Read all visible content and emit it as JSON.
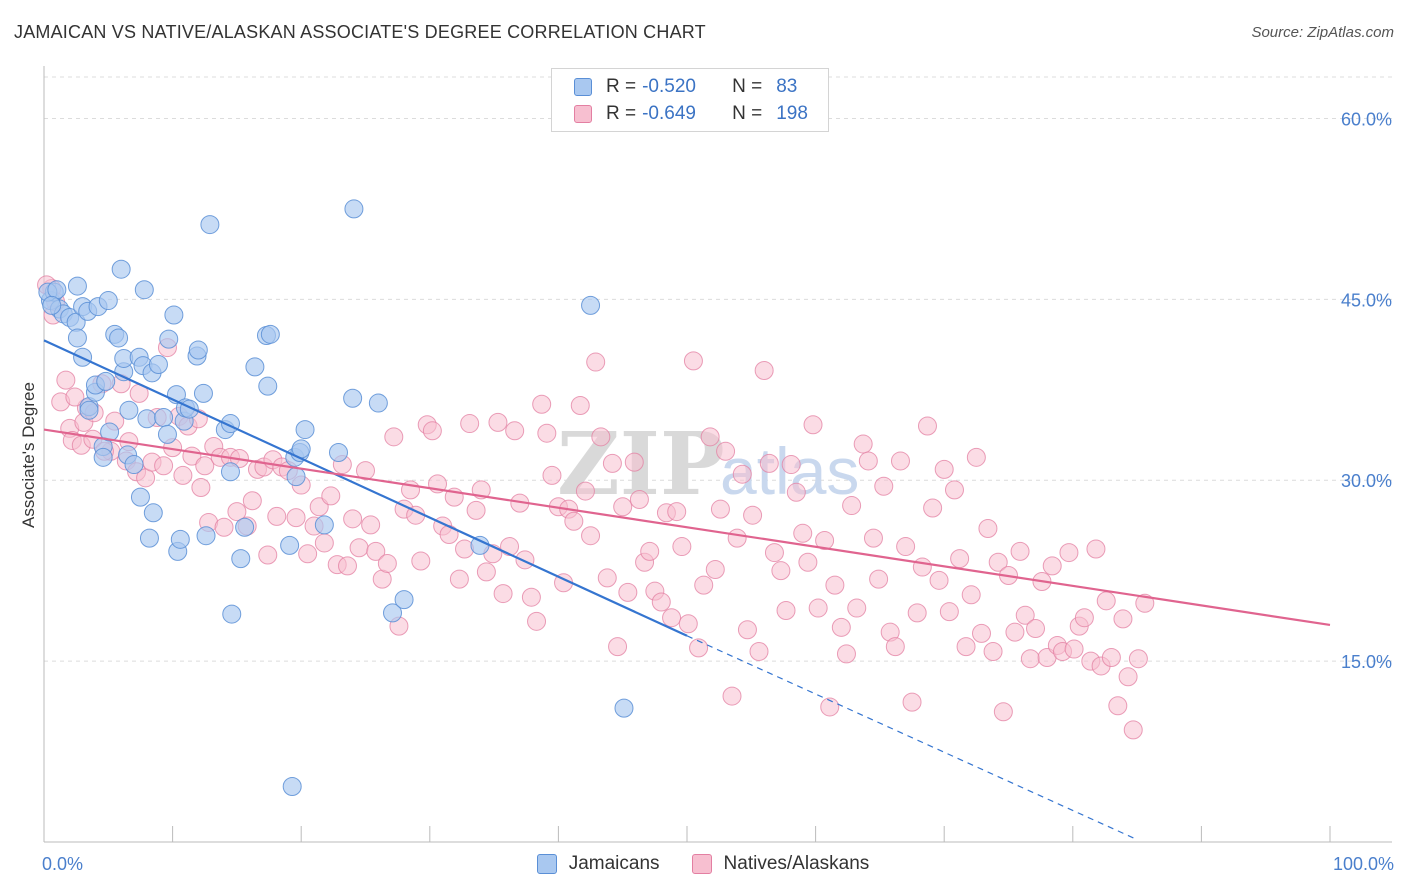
{
  "header": {
    "title": "JAMAICAN VS NATIVE/ALASKAN ASSOCIATE'S DEGREE CORRELATION CHART",
    "source": "Source: ZipAtlas.com"
  },
  "legend_top": {
    "rows": [
      {
        "r_label": "R =",
        "r_value": "-0.520",
        "n_label": "N =",
        "n_value": "83"
      },
      {
        "r_label": "R =",
        "r_value": "-0.649",
        "n_label": "N =",
        "n_value": "198"
      }
    ]
  },
  "colors": {
    "jamaicans_fill": "#a9c8f0",
    "jamaicans_stroke": "#5a8fd6",
    "jamaicans_line": "#3575d0",
    "natives_fill": "#f7bfd0",
    "natives_stroke": "#e37fa2",
    "natives_line": "#e0648f",
    "tick_text": "#4a7fcc"
  },
  "chart_data": {
    "type": "scatter",
    "title": "JAMAICAN VS NATIVE/ALASKAN ASSOCIATE'S DEGREE CORRELATION CHART",
    "xlabel": "",
    "ylabel": "Associate's Degree",
    "xlim": [
      0,
      100
    ],
    "ylim": [
      0,
      64.6
    ],
    "x_ticks": [
      "0.0%",
      "100.0%"
    ],
    "y_ticks": [
      {
        "value": 15,
        "label": "15.0%"
      },
      {
        "value": 30,
        "label": "30.0%"
      },
      {
        "value": 45,
        "label": "45.0%"
      },
      {
        "value": 60,
        "label": "60.0%"
      }
    ],
    "grid": true,
    "watermark": "ZIPatlas",
    "series": [
      {
        "name": "Jamaicans",
        "r": -0.52,
        "n": 83,
        "trend": {
          "x0": 0,
          "y0": 41.6,
          "x1": 50,
          "y1": 17.1,
          "dash_to_x": 85,
          "dash_to_y": 0.2
        },
        "points": [
          [
            0.5,
            44.9
          ],
          [
            0.8,
            45.6
          ],
          [
            1.2,
            44.2
          ],
          [
            1.5,
            43.8
          ],
          [
            2.0,
            43.5
          ],
          [
            2.5,
            43.1
          ],
          [
            2.6,
            46.1
          ],
          [
            2.6,
            41.8
          ],
          [
            3.0,
            44.4
          ],
          [
            3.0,
            40.2
          ],
          [
            3.4,
            44.0
          ],
          [
            3.5,
            36.1
          ],
          [
            3.5,
            35.8
          ],
          [
            4.0,
            37.3
          ],
          [
            4.0,
            37.9
          ],
          [
            4.2,
            44.4
          ],
          [
            4.6,
            32.8
          ],
          [
            4.6,
            31.9
          ],
          [
            4.8,
            38.2
          ],
          [
            5.0,
            44.9
          ],
          [
            5.1,
            34.0
          ],
          [
            5.5,
            42.1
          ],
          [
            5.8,
            41.8
          ],
          [
            6.0,
            47.5
          ],
          [
            6.2,
            39.0
          ],
          [
            6.2,
            40.1
          ],
          [
            6.5,
            32.1
          ],
          [
            6.6,
            35.8
          ],
          [
            7.0,
            31.3
          ],
          [
            7.4,
            40.2
          ],
          [
            7.5,
            28.6
          ],
          [
            7.7,
            39.5
          ],
          [
            7.8,
            45.8
          ],
          [
            8.0,
            35.1
          ],
          [
            8.2,
            25.2
          ],
          [
            8.4,
            38.9
          ],
          [
            8.5,
            27.3
          ],
          [
            8.9,
            39.6
          ],
          [
            9.3,
            35.2
          ],
          [
            9.6,
            33.8
          ],
          [
            9.7,
            41.7
          ],
          [
            10.1,
            43.7
          ],
          [
            10.3,
            37.1
          ],
          [
            10.4,
            24.1
          ],
          [
            10.6,
            25.1
          ],
          [
            10.9,
            34.9
          ],
          [
            11.0,
            36.0
          ],
          [
            11.3,
            35.9
          ],
          [
            11.9,
            40.3
          ],
          [
            12.0,
            40.8
          ],
          [
            12.4,
            37.2
          ],
          [
            12.6,
            25.4
          ],
          [
            12.9,
            51.2
          ],
          [
            14.1,
            34.2
          ],
          [
            14.5,
            30.7
          ],
          [
            14.5,
            34.7
          ],
          [
            14.6,
            18.9
          ],
          [
            15.3,
            23.5
          ],
          [
            15.6,
            26.1
          ],
          [
            16.4,
            39.4
          ],
          [
            17.3,
            42.0
          ],
          [
            17.4,
            37.8
          ],
          [
            17.6,
            42.1
          ],
          [
            19.1,
            24.6
          ],
          [
            19.3,
            4.6
          ],
          [
            19.5,
            31.9
          ],
          [
            19.6,
            30.3
          ],
          [
            19.9,
            32.3
          ],
          [
            20.0,
            32.6
          ],
          [
            20.3,
            34.2
          ],
          [
            21.8,
            26.3
          ],
          [
            22.9,
            32.3
          ],
          [
            24.0,
            36.8
          ],
          [
            24.1,
            52.5
          ],
          [
            26.0,
            36.4
          ],
          [
            27.1,
            19.0
          ],
          [
            28.0,
            20.1
          ],
          [
            33.9,
            24.6
          ],
          [
            42.5,
            44.5
          ],
          [
            45.1,
            11.1
          ],
          [
            0.3,
            45.6
          ],
          [
            1.0,
            45.8
          ],
          [
            0.6,
            44.5
          ]
        ]
      },
      {
        "name": "Natives/Alaskans",
        "r": -0.649,
        "n": 198,
        "trend": {
          "x0": 0,
          "y0": 34.2,
          "x1": 100,
          "y1": 18.0
        },
        "points": [
          [
            0.6,
            45.9
          ],
          [
            0.7,
            43.7
          ],
          [
            1.3,
            36.5
          ],
          [
            2.0,
            34.3
          ],
          [
            2.2,
            33.3
          ],
          [
            2.9,
            32.9
          ],
          [
            3.3,
            36.0
          ],
          [
            3.8,
            33.4
          ],
          [
            4.5,
            38.0
          ],
          [
            5.2,
            32.4
          ],
          [
            5.5,
            34.9
          ],
          [
            6.0,
            38.0
          ],
          [
            6.4,
            31.6
          ],
          [
            6.6,
            33.2
          ],
          [
            7.2,
            30.7
          ],
          [
            7.4,
            37.2
          ],
          [
            7.9,
            30.2
          ],
          [
            8.4,
            31.5
          ],
          [
            8.8,
            35.2
          ],
          [
            9.3,
            31.2
          ],
          [
            9.6,
            41.0
          ],
          [
            10.0,
            32.7
          ],
          [
            10.5,
            35.3
          ],
          [
            10.8,
            30.4
          ],
          [
            11.2,
            34.5
          ],
          [
            11.5,
            32.0
          ],
          [
            12.0,
            35.1
          ],
          [
            12.5,
            31.2
          ],
          [
            12.8,
            26.5
          ],
          [
            13.2,
            32.8
          ],
          [
            13.7,
            31.9
          ],
          [
            14.0,
            26.1
          ],
          [
            14.5,
            31.9
          ],
          [
            15.0,
            27.4
          ],
          [
            15.2,
            31.8
          ],
          [
            15.8,
            26.2
          ],
          [
            16.2,
            28.3
          ],
          [
            16.6,
            30.9
          ],
          [
            17.1,
            31.1
          ],
          [
            17.4,
            23.8
          ],
          [
            17.8,
            31.7
          ],
          [
            18.1,
            27.0
          ],
          [
            18.5,
            31.1
          ],
          [
            19.0,
            30.8
          ],
          [
            19.6,
            26.9
          ],
          [
            20.0,
            29.6
          ],
          [
            20.5,
            23.9
          ],
          [
            21.0,
            26.2
          ],
          [
            21.4,
            27.8
          ],
          [
            21.8,
            24.8
          ],
          [
            22.3,
            28.7
          ],
          [
            22.8,
            23.0
          ],
          [
            23.2,
            31.3
          ],
          [
            23.6,
            22.9
          ],
          [
            24.0,
            26.8
          ],
          [
            24.5,
            24.4
          ],
          [
            25.0,
            30.8
          ],
          [
            25.4,
            26.3
          ],
          [
            25.8,
            24.1
          ],
          [
            26.3,
            21.8
          ],
          [
            26.7,
            23.1
          ],
          [
            27.2,
            33.6
          ],
          [
            27.6,
            17.9
          ],
          [
            28.0,
            27.6
          ],
          [
            28.5,
            29.2
          ],
          [
            28.9,
            27.1
          ],
          [
            29.3,
            23.3
          ],
          [
            29.8,
            34.6
          ],
          [
            30.2,
            34.1
          ],
          [
            30.6,
            29.7
          ],
          [
            31.0,
            26.2
          ],
          [
            31.5,
            25.5
          ],
          [
            31.9,
            28.6
          ],
          [
            32.3,
            21.8
          ],
          [
            32.7,
            24.3
          ],
          [
            33.1,
            34.7
          ],
          [
            33.6,
            27.5
          ],
          [
            34.0,
            29.2
          ],
          [
            34.4,
            22.4
          ],
          [
            34.9,
            23.9
          ],
          [
            35.3,
            34.8
          ],
          [
            35.7,
            20.6
          ],
          [
            36.2,
            24.5
          ],
          [
            36.6,
            34.1
          ],
          [
            37.0,
            28.1
          ],
          [
            37.4,
            23.4
          ],
          [
            37.9,
            20.3
          ],
          [
            38.3,
            18.3
          ],
          [
            38.7,
            36.3
          ],
          [
            39.1,
            33.9
          ],
          [
            39.5,
            30.4
          ],
          [
            40.0,
            27.8
          ],
          [
            40.4,
            21.5
          ],
          [
            40.8,
            27.6
          ],
          [
            41.2,
            26.6
          ],
          [
            41.7,
            36.2
          ],
          [
            42.1,
            29.1
          ],
          [
            42.5,
            25.4
          ],
          [
            42.9,
            39.8
          ],
          [
            43.3,
            33.6
          ],
          [
            43.8,
            21.9
          ],
          [
            44.2,
            31.4
          ],
          [
            44.6,
            16.2
          ],
          [
            45.0,
            27.8
          ],
          [
            45.4,
            20.7
          ],
          [
            45.9,
            31.5
          ],
          [
            46.3,
            28.4
          ],
          [
            46.7,
            23.2
          ],
          [
            47.1,
            24.1
          ],
          [
            47.5,
            20.8
          ],
          [
            48.0,
            19.9
          ],
          [
            48.4,
            27.3
          ],
          [
            48.8,
            18.6
          ],
          [
            49.2,
            27.4
          ],
          [
            49.6,
            24.5
          ],
          [
            50.1,
            18.1
          ],
          [
            50.5,
            39.9
          ],
          [
            50.9,
            16.1
          ],
          [
            51.3,
            21.3
          ],
          [
            51.8,
            33.6
          ],
          [
            52.2,
            22.6
          ],
          [
            52.6,
            27.6
          ],
          [
            53.0,
            32.4
          ],
          [
            53.5,
            12.1
          ],
          [
            53.9,
            25.2
          ],
          [
            54.3,
            30.5
          ],
          [
            54.7,
            17.6
          ],
          [
            55.1,
            27.1
          ],
          [
            55.6,
            15.8
          ],
          [
            56.0,
            39.1
          ],
          [
            56.4,
            31.4
          ],
          [
            56.8,
            24.0
          ],
          [
            57.3,
            22.5
          ],
          [
            57.7,
            19.2
          ],
          [
            58.1,
            31.3
          ],
          [
            58.5,
            29.0
          ],
          [
            59.0,
            25.6
          ],
          [
            59.4,
            23.2
          ],
          [
            59.8,
            34.6
          ],
          [
            60.2,
            19.4
          ],
          [
            60.7,
            25.0
          ],
          [
            61.1,
            11.2
          ],
          [
            61.5,
            21.3
          ],
          [
            62.0,
            17.8
          ],
          [
            62.4,
            15.6
          ],
          [
            62.8,
            27.9
          ],
          [
            63.2,
            19.4
          ],
          [
            63.7,
            33.0
          ],
          [
            64.1,
            31.6
          ],
          [
            64.5,
            25.2
          ],
          [
            64.9,
            21.8
          ],
          [
            65.3,
            29.5
          ],
          [
            65.8,
            17.4
          ],
          [
            66.2,
            16.2
          ],
          [
            66.6,
            31.6
          ],
          [
            67.0,
            24.5
          ],
          [
            67.5,
            11.6
          ],
          [
            67.9,
            19.0
          ],
          [
            68.3,
            22.8
          ],
          [
            68.7,
            34.5
          ],
          [
            69.1,
            27.7
          ],
          [
            69.6,
            21.7
          ],
          [
            70.0,
            30.9
          ],
          [
            70.4,
            19.1
          ],
          [
            70.8,
            29.2
          ],
          [
            71.2,
            23.5
          ],
          [
            71.7,
            16.2
          ],
          [
            72.1,
            20.5
          ],
          [
            72.5,
            31.9
          ],
          [
            72.9,
            17.3
          ],
          [
            73.4,
            26.0
          ],
          [
            73.8,
            15.8
          ],
          [
            74.2,
            23.2
          ],
          [
            74.6,
            10.8
          ],
          [
            75.0,
            22.1
          ],
          [
            75.5,
            17.4
          ],
          [
            75.9,
            24.1
          ],
          [
            76.3,
            18.8
          ],
          [
            76.7,
            15.2
          ],
          [
            77.1,
            17.7
          ],
          [
            77.6,
            21.6
          ],
          [
            78.0,
            15.3
          ],
          [
            78.4,
            22.9
          ],
          [
            78.8,
            16.3
          ],
          [
            79.2,
            15.8
          ],
          [
            79.7,
            24.0
          ],
          [
            80.1,
            16.0
          ],
          [
            80.5,
            17.9
          ],
          [
            80.9,
            18.6
          ],
          [
            81.4,
            15.0
          ],
          [
            81.8,
            24.3
          ],
          [
            82.2,
            14.6
          ],
          [
            82.6,
            20.0
          ],
          [
            83.0,
            15.3
          ],
          [
            83.5,
            11.3
          ],
          [
            83.9,
            18.5
          ],
          [
            84.3,
            13.7
          ],
          [
            84.7,
            9.3
          ],
          [
            85.1,
            15.2
          ],
          [
            85.6,
            19.8
          ],
          [
            0.2,
            46.2
          ],
          [
            0.9,
            44.8
          ],
          [
            1.7,
            38.3
          ],
          [
            2.4,
            36.9
          ],
          [
            3.1,
            34.8
          ],
          [
            3.9,
            35.6
          ],
          [
            4.7,
            32.4
          ],
          [
            12.2,
            29.4
          ]
        ]
      }
    ]
  }
}
